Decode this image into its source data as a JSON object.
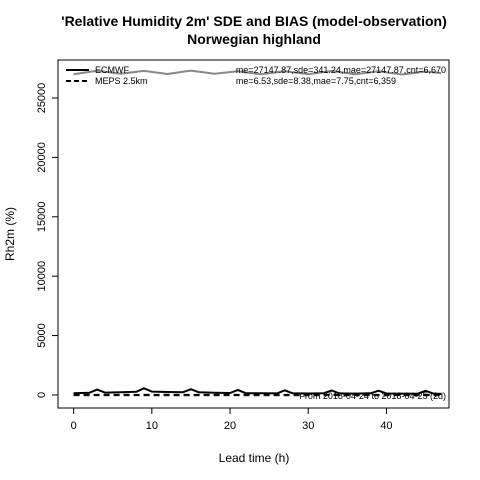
{
  "chart_data": {
    "type": "line",
    "title": "'Relative Humidity 2m' SDE and BIAS (model-observation)",
    "subtitle": "Norwegian highland",
    "xlabel": "Lead time (h)",
    "ylabel": "Rh2m (%)",
    "xlim": [
      -2,
      48
    ],
    "ylim": [
      -1100,
      28200
    ],
    "x_ticks": [
      0,
      10,
      20,
      30,
      40
    ],
    "y_ticks": [
      0,
      5000,
      10000,
      15000,
      20000,
      25000
    ],
    "grid": false,
    "legend_position": "top-left",
    "series": [
      {
        "name": "ECMWF",
        "color": "#000000",
        "stats": "me=27147.87,sde=341.24,mae=27147.87,cnt=6,670",
        "sde": {
          "color": "#888888",
          "dash": "solid",
          "x": [
            0,
            3,
            6,
            9,
            12,
            15,
            18,
            21,
            24,
            27,
            30,
            33,
            36,
            39,
            42,
            45,
            47
          ],
          "y": [
            27000,
            27300,
            27050,
            27280,
            27020,
            27310,
            27040,
            27250,
            27000,
            27260,
            27010,
            27270,
            27000,
            27250,
            26980,
            27230,
            27100
          ]
        },
        "bias": {
          "color": "#000000",
          "dash": "solid",
          "x": [
            0,
            2,
            3,
            4,
            6,
            8,
            9,
            10,
            12,
            14,
            15,
            16,
            18,
            20,
            21,
            22,
            24,
            26,
            27,
            28,
            30,
            32,
            33,
            34,
            36,
            38,
            39,
            40,
            42,
            44,
            45,
            46,
            47
          ],
          "y": [
            150,
            180,
            450,
            200,
            220,
            260,
            560,
            280,
            250,
            230,
            480,
            220,
            180,
            160,
            420,
            150,
            140,
            130,
            390,
            140,
            120,
            150,
            370,
            130,
            110,
            140,
            360,
            120,
            110,
            100,
            350,
            110,
            90
          ]
        }
      },
      {
        "name": "MEPS 2.5km",
        "color": "#888888",
        "stats": "me=6.53,sde=8.38,mae=7.75,cnt=6,359",
        "sde": {
          "color": "#888888",
          "dash": "dashed",
          "x": [
            0,
            6,
            12,
            18,
            24,
            30,
            36,
            42,
            47
          ],
          "y": [
            -40,
            -30,
            -50,
            -40,
            -35,
            -45,
            -30,
            -40,
            -35
          ]
        },
        "bias": {
          "color": "#000000",
          "dash": "dashed",
          "x": [
            0,
            6,
            12,
            18,
            24,
            30,
            36,
            42,
            47
          ],
          "y": [
            8,
            6,
            9,
            7,
            6,
            8,
            6,
            7,
            6
          ]
        }
      }
    ],
    "footnote": "From 2018-04-24 to 2018-04-25 (2d)"
  }
}
